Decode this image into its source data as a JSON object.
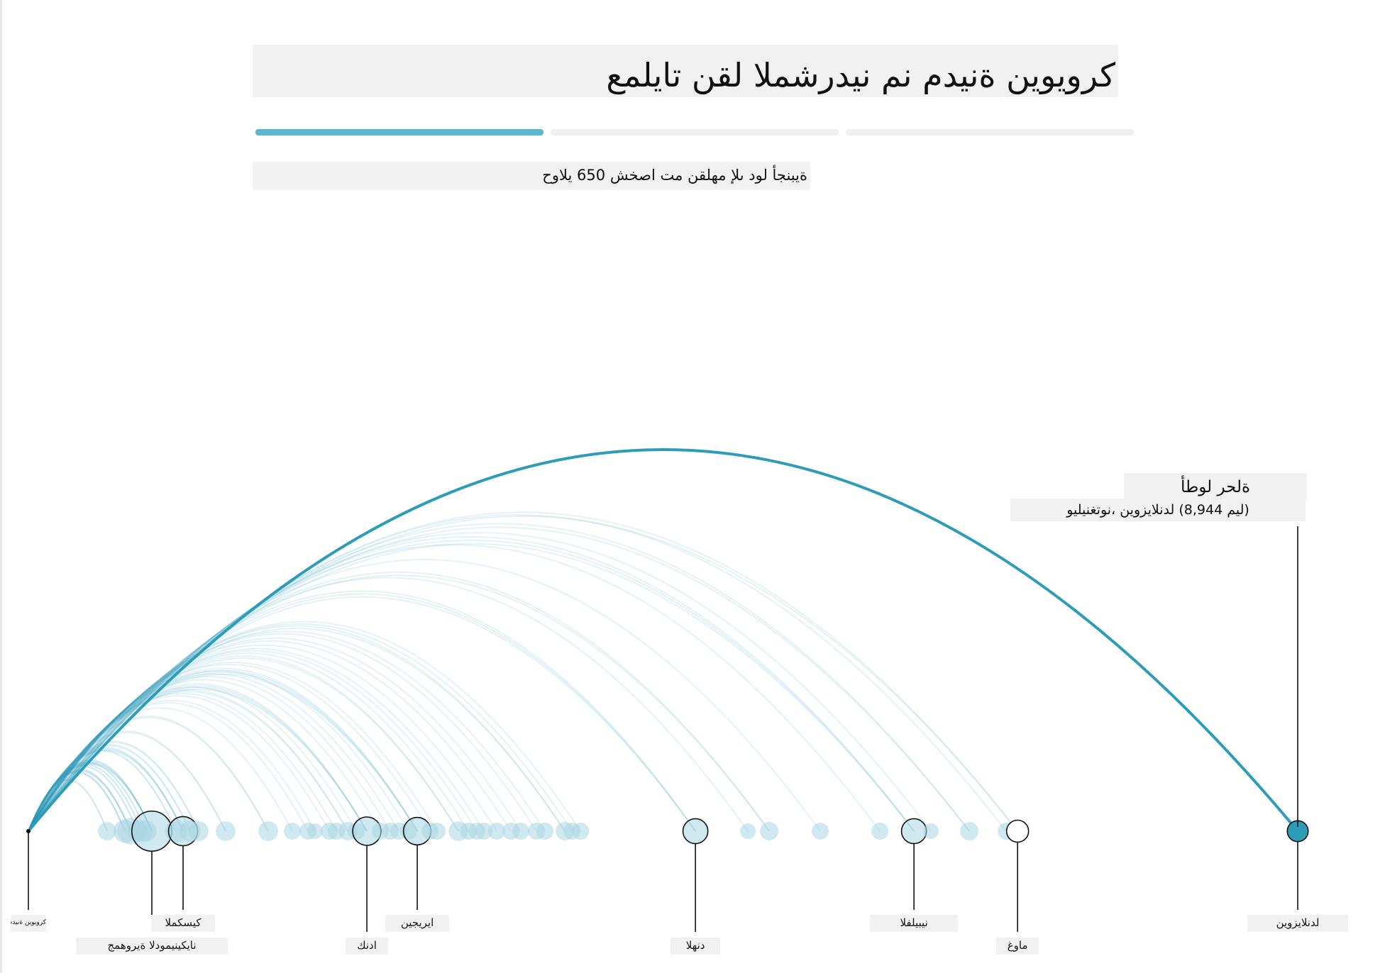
{
  "header": {
    "title": "كرويوين ةنيدم نم نيدرشملا لقن تايلمع",
    "subtitle": "ةيبنجأ لود ىلإ مهلقن مت اصخش 650 يلاوح",
    "steps": [
      {
        "fraction": 1.0,
        "active": true
      },
      {
        "fraction": 0.0,
        "active": false
      },
      {
        "fraction": 0.0,
        "active": false
      }
    ]
  },
  "colors": {
    "arc": "#2d9cb8",
    "arc_light": "#bfe0ea",
    "node_fill": "#a9d6e4",
    "node_stroke": "#111111",
    "bar_active": "#5fb5c9",
    "bar_inactive": "#f0f0f0",
    "label_bg": "#f1f1f1"
  },
  "annotation": {
    "title": "ةلحر لوطأ",
    "subtitle": "(ليم 8,944) لدنلايزوين ،نوتغنيليو"
  },
  "chart_data": {
    "type": "arc",
    "origin": "كرويوين ةنيدم",
    "distance_unit": "ليم",
    "x_max_miles": 8944,
    "highlight": {
      "label": "لدنلايزوين",
      "miles": 8944
    },
    "destinations": [
      {
        "miles": 555,
        "weight": 6
      },
      {
        "miles": 680,
        "weight": 10
      },
      {
        "miles": 720,
        "weight": 14
      },
      {
        "miles": 770,
        "weight": 8
      },
      {
        "miles": 800,
        "weight": 9
      },
      {
        "miles": 830,
        "weight": 8
      },
      {
        "miles": 870,
        "weight": 34,
        "label": "نايكينيمودلا ةيروهمج"
      },
      {
        "miles": 1040,
        "weight": 9
      },
      {
        "miles": 1090,
        "weight": 17,
        "label": "كيسكملا"
      },
      {
        "miles": 1140,
        "weight": 8
      },
      {
        "miles": 1200,
        "weight": 7
      },
      {
        "miles": 1390,
        "weight": 7
      },
      {
        "miles": 1690,
        "weight": 7
      },
      {
        "miles": 1860,
        "weight": 5
      },
      {
        "miles": 1970,
        "weight": 5
      },
      {
        "miles": 2020,
        "weight": 4
      },
      {
        "miles": 2120,
        "weight": 5
      },
      {
        "miles": 2170,
        "weight": 5
      },
      {
        "miles": 2250,
        "weight": 6
      },
      {
        "miles": 2310,
        "weight": 5
      },
      {
        "miles": 2385,
        "weight": 16,
        "label": "ادنك"
      },
      {
        "miles": 2480,
        "weight": 5
      },
      {
        "miles": 2550,
        "weight": 5
      },
      {
        "miles": 2610,
        "weight": 5
      },
      {
        "miles": 2680,
        "weight": 5
      },
      {
        "miles": 2740,
        "weight": 15,
        "label": "ايريجين"
      },
      {
        "miles": 2830,
        "weight": 5
      },
      {
        "miles": 2880,
        "weight": 5
      },
      {
        "miles": 3030,
        "weight": 7
      },
      {
        "miles": 3100,
        "weight": 5
      },
      {
        "miles": 3160,
        "weight": 5
      },
      {
        "miles": 3210,
        "weight": 5
      },
      {
        "miles": 3300,
        "weight": 5
      },
      {
        "miles": 3400,
        "weight": 5
      },
      {
        "miles": 3470,
        "weight": 5
      },
      {
        "miles": 3580,
        "weight": 5
      },
      {
        "miles": 3640,
        "weight": 5
      },
      {
        "miles": 3780,
        "weight": 6
      },
      {
        "miles": 3830,
        "weight": 5
      },
      {
        "miles": 3890,
        "weight": 5
      },
      {
        "miles": 4700,
        "weight": 12,
        "label": "دنهلا"
      },
      {
        "miles": 5070,
        "weight": 4
      },
      {
        "miles": 5220,
        "weight": 6
      },
      {
        "miles": 5580,
        "weight": 5
      },
      {
        "miles": 6000,
        "weight": 5
      },
      {
        "miles": 6240,
        "weight": 12,
        "label": "نيبيلفلا"
      },
      {
        "miles": 6360,
        "weight": 4
      },
      {
        "miles": 6630,
        "weight": 6
      },
      {
        "miles": 6890,
        "weight": 5
      },
      {
        "miles": 6970,
        "weight": 9,
        "label": "ماوغ"
      },
      {
        "miles": 8944,
        "weight": 8,
        "label": "لدنلايزوين"
      }
    ]
  },
  "axis_labels": [
    {
      "text": "كرويوين ةنيدم",
      "miles": 0
    },
    {
      "text": "نايكينيمودلا ةيروهمج",
      "miles": 870
    },
    {
      "text": "كيسكملا",
      "miles": 1090
    },
    {
      "text": "ادنك",
      "miles": 2385
    },
    {
      "text": "ايريجين",
      "miles": 2740
    },
    {
      "text": "دنهلا",
      "miles": 4700
    },
    {
      "text": "نيبيلفلا",
      "miles": 6240
    },
    {
      "text": "ماوغ",
      "miles": 6970
    },
    {
      "text": "لدنلايزوين",
      "miles": 8944
    }
  ]
}
